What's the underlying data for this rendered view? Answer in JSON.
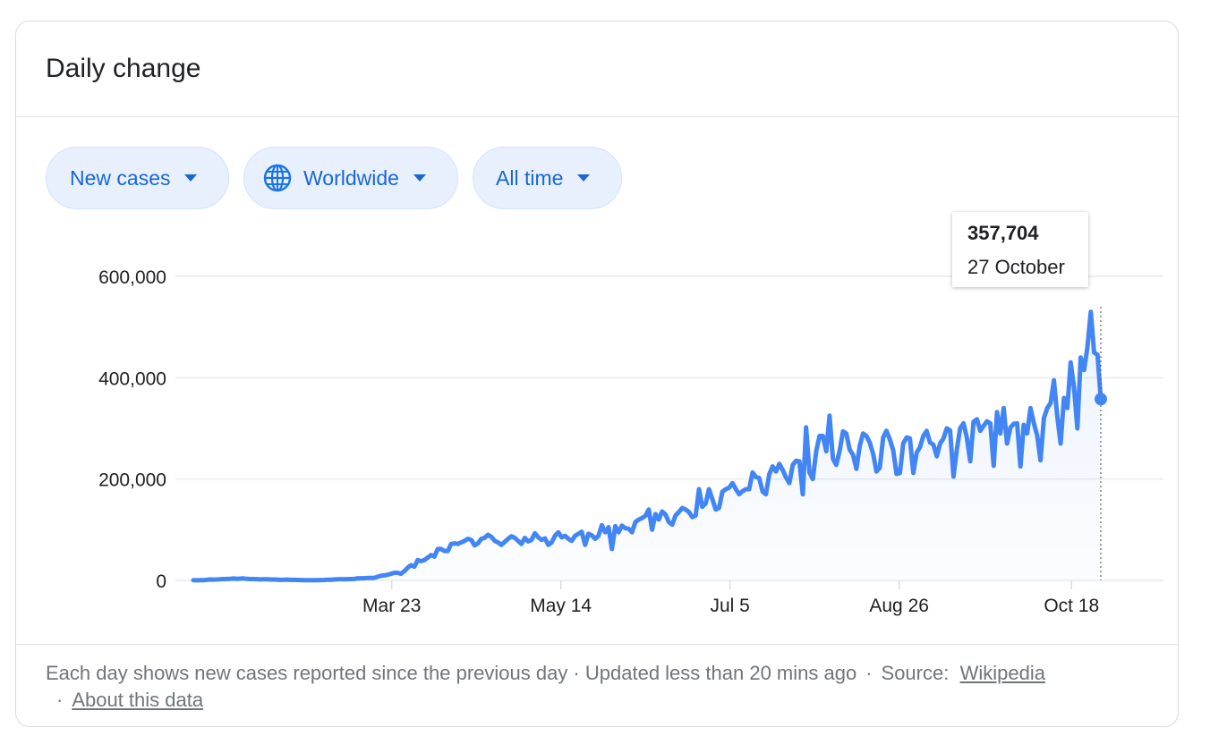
{
  "card": {
    "title": "Daily change"
  },
  "filters": {
    "metric": "New cases",
    "region": "Worldwide",
    "range": "All time"
  },
  "icons": {
    "region_icon": "globe-icon",
    "dropdown_icon": "caret-down-icon"
  },
  "colors": {
    "line": "#4285f4",
    "chip_text": "#1967d2",
    "chip_bg": "#e8f0fe"
  },
  "tooltip": {
    "value": "357,704",
    "date": "27 October"
  },
  "footer": {
    "note": "Each day shows new cases reported since the previous day · Updated less than 20 mins ago",
    "source_label": "Source:",
    "source_link": "Wikipedia",
    "about_link": "About this data"
  },
  "chart_data": {
    "type": "area",
    "title": "",
    "xlabel": "",
    "ylabel": "",
    "ylim": [
      0,
      600000
    ],
    "yticks": [
      0,
      200000,
      400000,
      600000
    ],
    "ytick_labels": [
      "0",
      "200,000",
      "400,000",
      "600,000"
    ],
    "xticks": [
      "Mar 23",
      "May 14",
      "Jul 5",
      "Aug 26",
      "Oct 18"
    ],
    "grid": true,
    "legend": "none",
    "x_start": "2020-01-22",
    "x_end": "2020-10-27",
    "highlight": {
      "x": "2020-10-27",
      "y": 357704
    },
    "series": [
      {
        "values": [
          557,
          100,
          600,
          500,
          1100,
          1800,
          1500,
          1700,
          2100,
          2600,
          2800,
          3100,
          3700,
          3200,
          3600,
          3800,
          3000,
          2600,
          2700,
          2500,
          2000,
          2100,
          2200,
          1800,
          1700,
          1600,
          1100,
          1200,
          1500,
          1100,
          1100,
          900,
          700,
          600,
          500,
          500,
          500,
          600,
          700,
          900,
          1300,
          1400,
          1800,
          2100,
          2400,
          2300,
          2400,
          2700,
          2900,
          4000,
          4200,
          4300,
          4800,
          5000,
          5200,
          7000,
          9000,
          10000,
          11000,
          13000,
          15000,
          15000,
          13000,
          18000,
          25000,
          30000,
          27000,
          40000,
          38000,
          40000,
          45000,
          50000,
          47000,
          62000,
          62000,
          58000,
          58000,
          72000,
          73000,
          72000,
          75000,
          78000,
          82000,
          80000,
          69000,
          73000,
          82000,
          84000,
          90000,
          86000,
          78000,
          75000,
          70000,
          76000,
          82000,
          87000,
          84000,
          78000,
          72000,
          84000,
          77000,
          80000,
          93000,
          85000,
          80000,
          83000,
          70000,
          75000,
          88000,
          95000,
          85000,
          88000,
          82000,
          78000,
          88000,
          92000,
          96000,
          70000,
          92000,
          89000,
          82000,
          88000,
          109000,
          95000,
          105000,
          62000,
          107000,
          95000,
          108000,
          103000,
          102000,
          95000,
          115000,
          120000,
          123000,
          127000,
          140000,
          100000,
          131000,
          120000,
          136000,
          130000,
          115000,
          110000,
          128000,
          135000,
          143000,
          140000,
          135000,
          125000,
          128000,
          180000,
          145000,
          152000,
          180000,
          160000,
          140000,
          143000,
          175000,
          180000,
          183000,
          192000,
          180000,
          170000,
          176000,
          180000,
          180000,
          213000,
          204000,
          202000,
          175000,
          170000,
          210000,
          225000,
          215000,
          230000,
          218000,
          203000,
          192000,
          228000,
          236000,
          235000,
          170000,
          302000,
          213000,
          200000,
          255000,
          285000,
          285000,
          255000,
          325000,
          240000,
          228000,
          255000,
          294000,
          290000,
          258000,
          248000,
          220000,
          265000,
          290000,
          285000,
          272000,
          250000,
          215000,
          222000,
          282000,
          295000,
          278000,
          257000,
          210000,
          212000,
          270000,
          282000,
          280000,
          212000,
          252000,
          263000,
          285000,
          295000,
          272000,
          268000,
          245000,
          270000,
          280000,
          300000,
          296000,
          205000,
          258000,
          300000,
          310000,
          282000,
          235000,
          313000,
          318000,
          295000,
          305000,
          314000,
          310000,
          226000,
          332000,
          290000,
          340000,
          270000,
          302000,
          309000,
          310000,
          225000,
          307000,
          290000,
          340000,
          310000,
          286000,
          237000,
          320000,
          340000,
          350000,
          395000,
          323000,
          270000,
          360000,
          340000,
          430000,
          380000,
          300000,
          440000,
          415000,
          460000,
          530000,
          450000,
          445000,
          357704
        ]
      }
    ]
  }
}
